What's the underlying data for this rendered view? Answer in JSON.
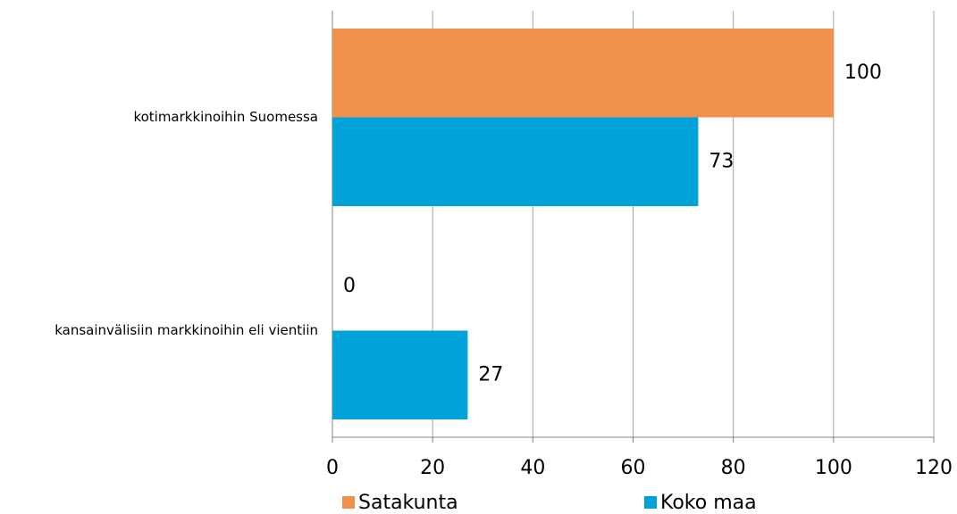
{
  "chart_data": {
    "type": "bar",
    "orientation": "horizontal",
    "categories": [
      "kotimarkkinoihin Suomessa",
      "kansainvälisiin markkinoihin eli vientiin"
    ],
    "series": [
      {
        "name": "Satakunta",
        "color": "#f0904a",
        "values": [
          100,
          0
        ]
      },
      {
        "name": "Koko maa",
        "color": "#00a3d9",
        "values": [
          73,
          27
        ]
      }
    ],
    "xlim": [
      0,
      120
    ],
    "xticks": [
      0,
      20,
      40,
      60,
      80,
      100,
      120
    ],
    "grid": true,
    "legend": "bottom"
  }
}
